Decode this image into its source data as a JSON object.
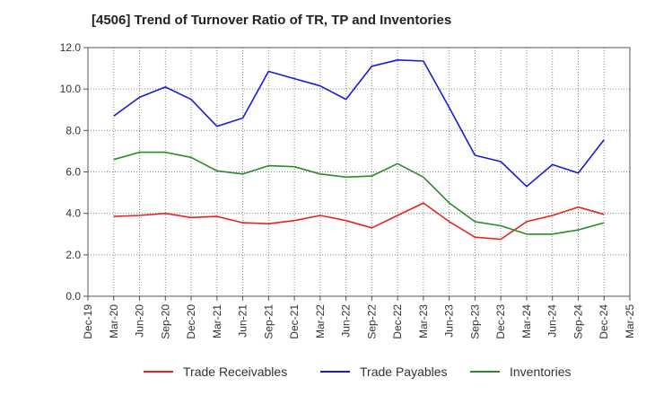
{
  "chart_data": {
    "type": "line",
    "title": "[4506]  Trend of Turnover Ratio of TR, TP and Inventories",
    "xlabel": "",
    "ylabel": "",
    "ylim": [
      0,
      12
    ],
    "y_ticks": [
      "0.0",
      "2.0",
      "4.0",
      "6.0",
      "8.0",
      "10.0",
      "12.0"
    ],
    "x_ticks": [
      "Dec-19",
      "Mar-20",
      "Jun-20",
      "Sep-20",
      "Dec-20",
      "Mar-21",
      "Jun-21",
      "Sep-21",
      "Dec-21",
      "Mar-22",
      "Jun-22",
      "Sep-22",
      "Dec-22",
      "Mar-23",
      "Jun-23",
      "Sep-23",
      "Dec-23",
      "Mar-24",
      "Jun-24",
      "Sep-24",
      "Dec-24",
      "Mar-25"
    ],
    "x": [
      "Mar-20",
      "Jun-20",
      "Sep-20",
      "Dec-20",
      "Mar-21",
      "Jun-21",
      "Sep-21",
      "Dec-21",
      "Mar-22",
      "Jun-22",
      "Sep-22",
      "Dec-22",
      "Mar-23",
      "Jun-23",
      "Sep-23",
      "Dec-23",
      "Mar-24",
      "Jun-24",
      "Sep-24",
      "Dec-24"
    ],
    "grid": true,
    "legend_position": "bottom",
    "series": [
      {
        "name": "Trade Receivables",
        "color": "#e8231f",
        "values": [
          3.85,
          3.9,
          4.0,
          3.8,
          3.85,
          3.55,
          3.5,
          3.65,
          3.9,
          3.65,
          3.3,
          3.9,
          4.5,
          3.6,
          2.85,
          2.75,
          3.6,
          3.9,
          4.3,
          3.95
        ]
      },
      {
        "name": "Trade Payables",
        "color": "#1a1adb",
        "values": [
          8.7,
          9.6,
          10.1,
          9.5,
          8.2,
          8.6,
          10.85,
          10.5,
          10.15,
          9.5,
          11.1,
          11.4,
          11.35,
          9.1,
          6.8,
          6.5,
          5.3,
          6.35,
          5.95,
          7.55
        ]
      },
      {
        "name": "Inventories",
        "color": "#2a8a2a",
        "values": [
          6.6,
          6.95,
          6.95,
          6.7,
          6.05,
          5.9,
          6.3,
          6.25,
          5.9,
          5.75,
          5.8,
          6.4,
          5.75,
          4.5,
          3.6,
          3.4,
          3.0,
          3.0,
          3.2,
          3.55
        ]
      }
    ]
  }
}
